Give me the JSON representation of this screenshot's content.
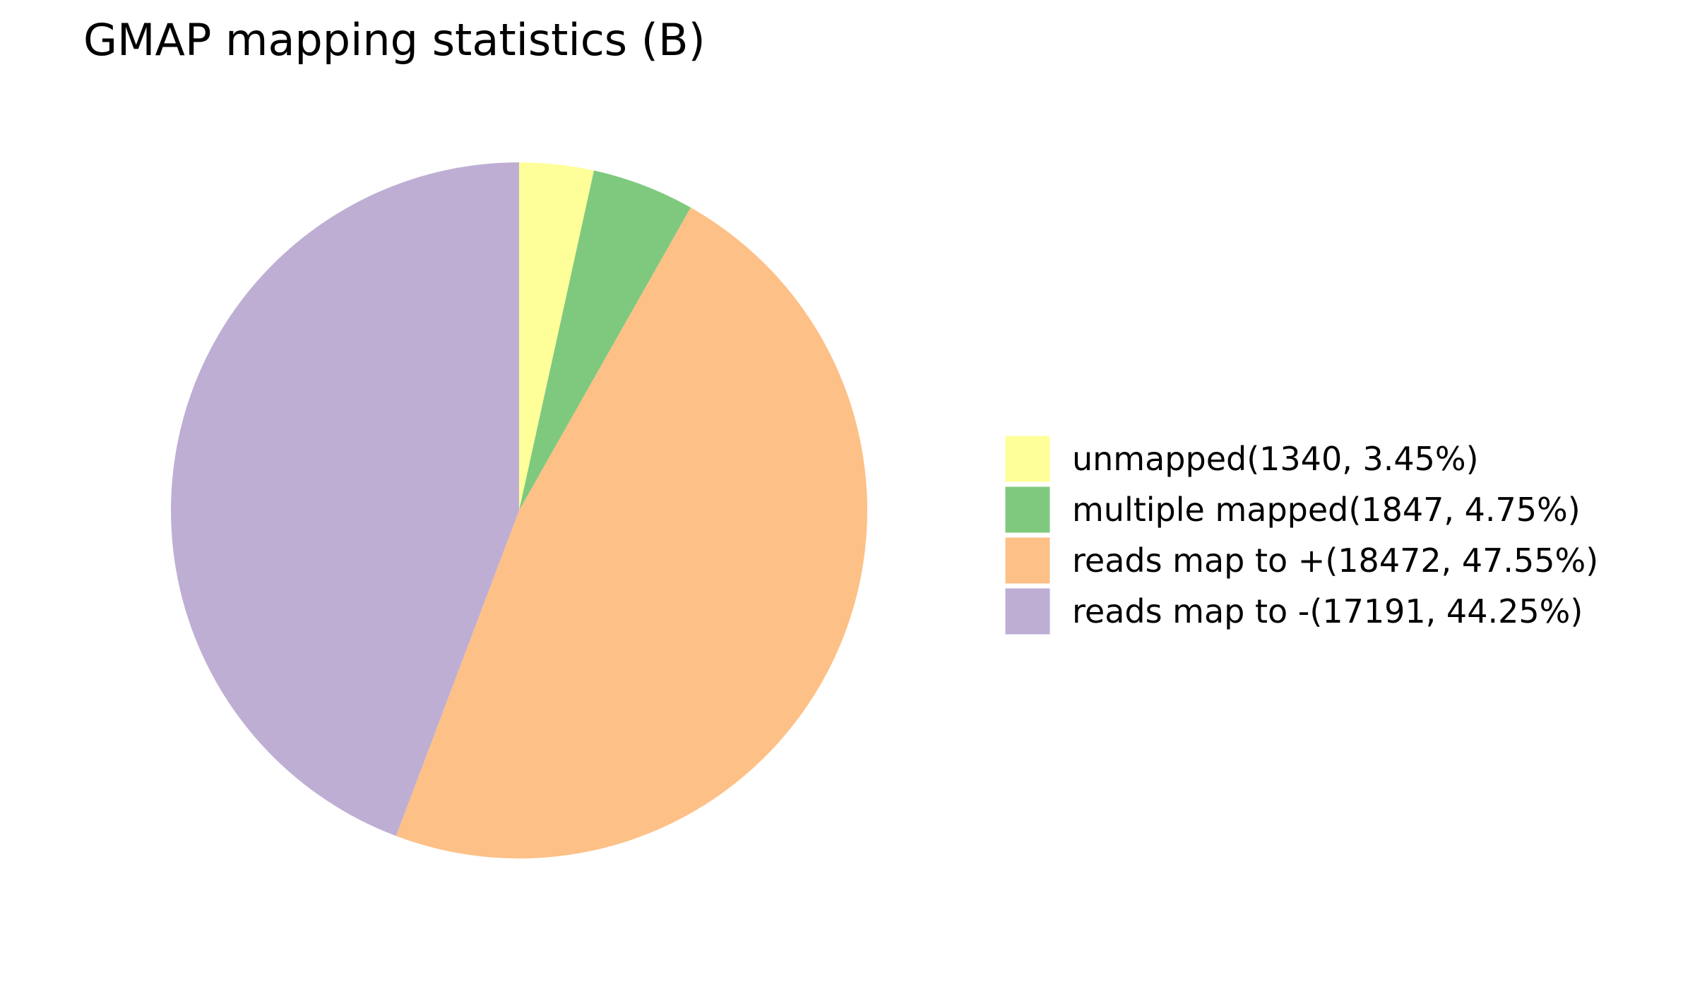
{
  "chart_data": {
    "type": "pie",
    "title": "GMAP mapping statistics (B)",
    "slices": [
      {
        "label": "unmapped(1340, 3.45%)",
        "value": 1340,
        "percent": 3.45,
        "color": "#ffff99"
      },
      {
        "label": "multiple mapped(1847, 4.75%)",
        "value": 1847,
        "percent": 4.75,
        "color": "#7fc97f"
      },
      {
        "label": "reads map to +(18472, 47.55%)",
        "value": 18472,
        "percent": 47.55,
        "color": "#fdc086"
      },
      {
        "label": "reads map to -(17191, 44.25%)",
        "value": 17191,
        "percent": 44.25,
        "color": "#beaed4"
      }
    ],
    "legend": {
      "position": "right"
    }
  }
}
